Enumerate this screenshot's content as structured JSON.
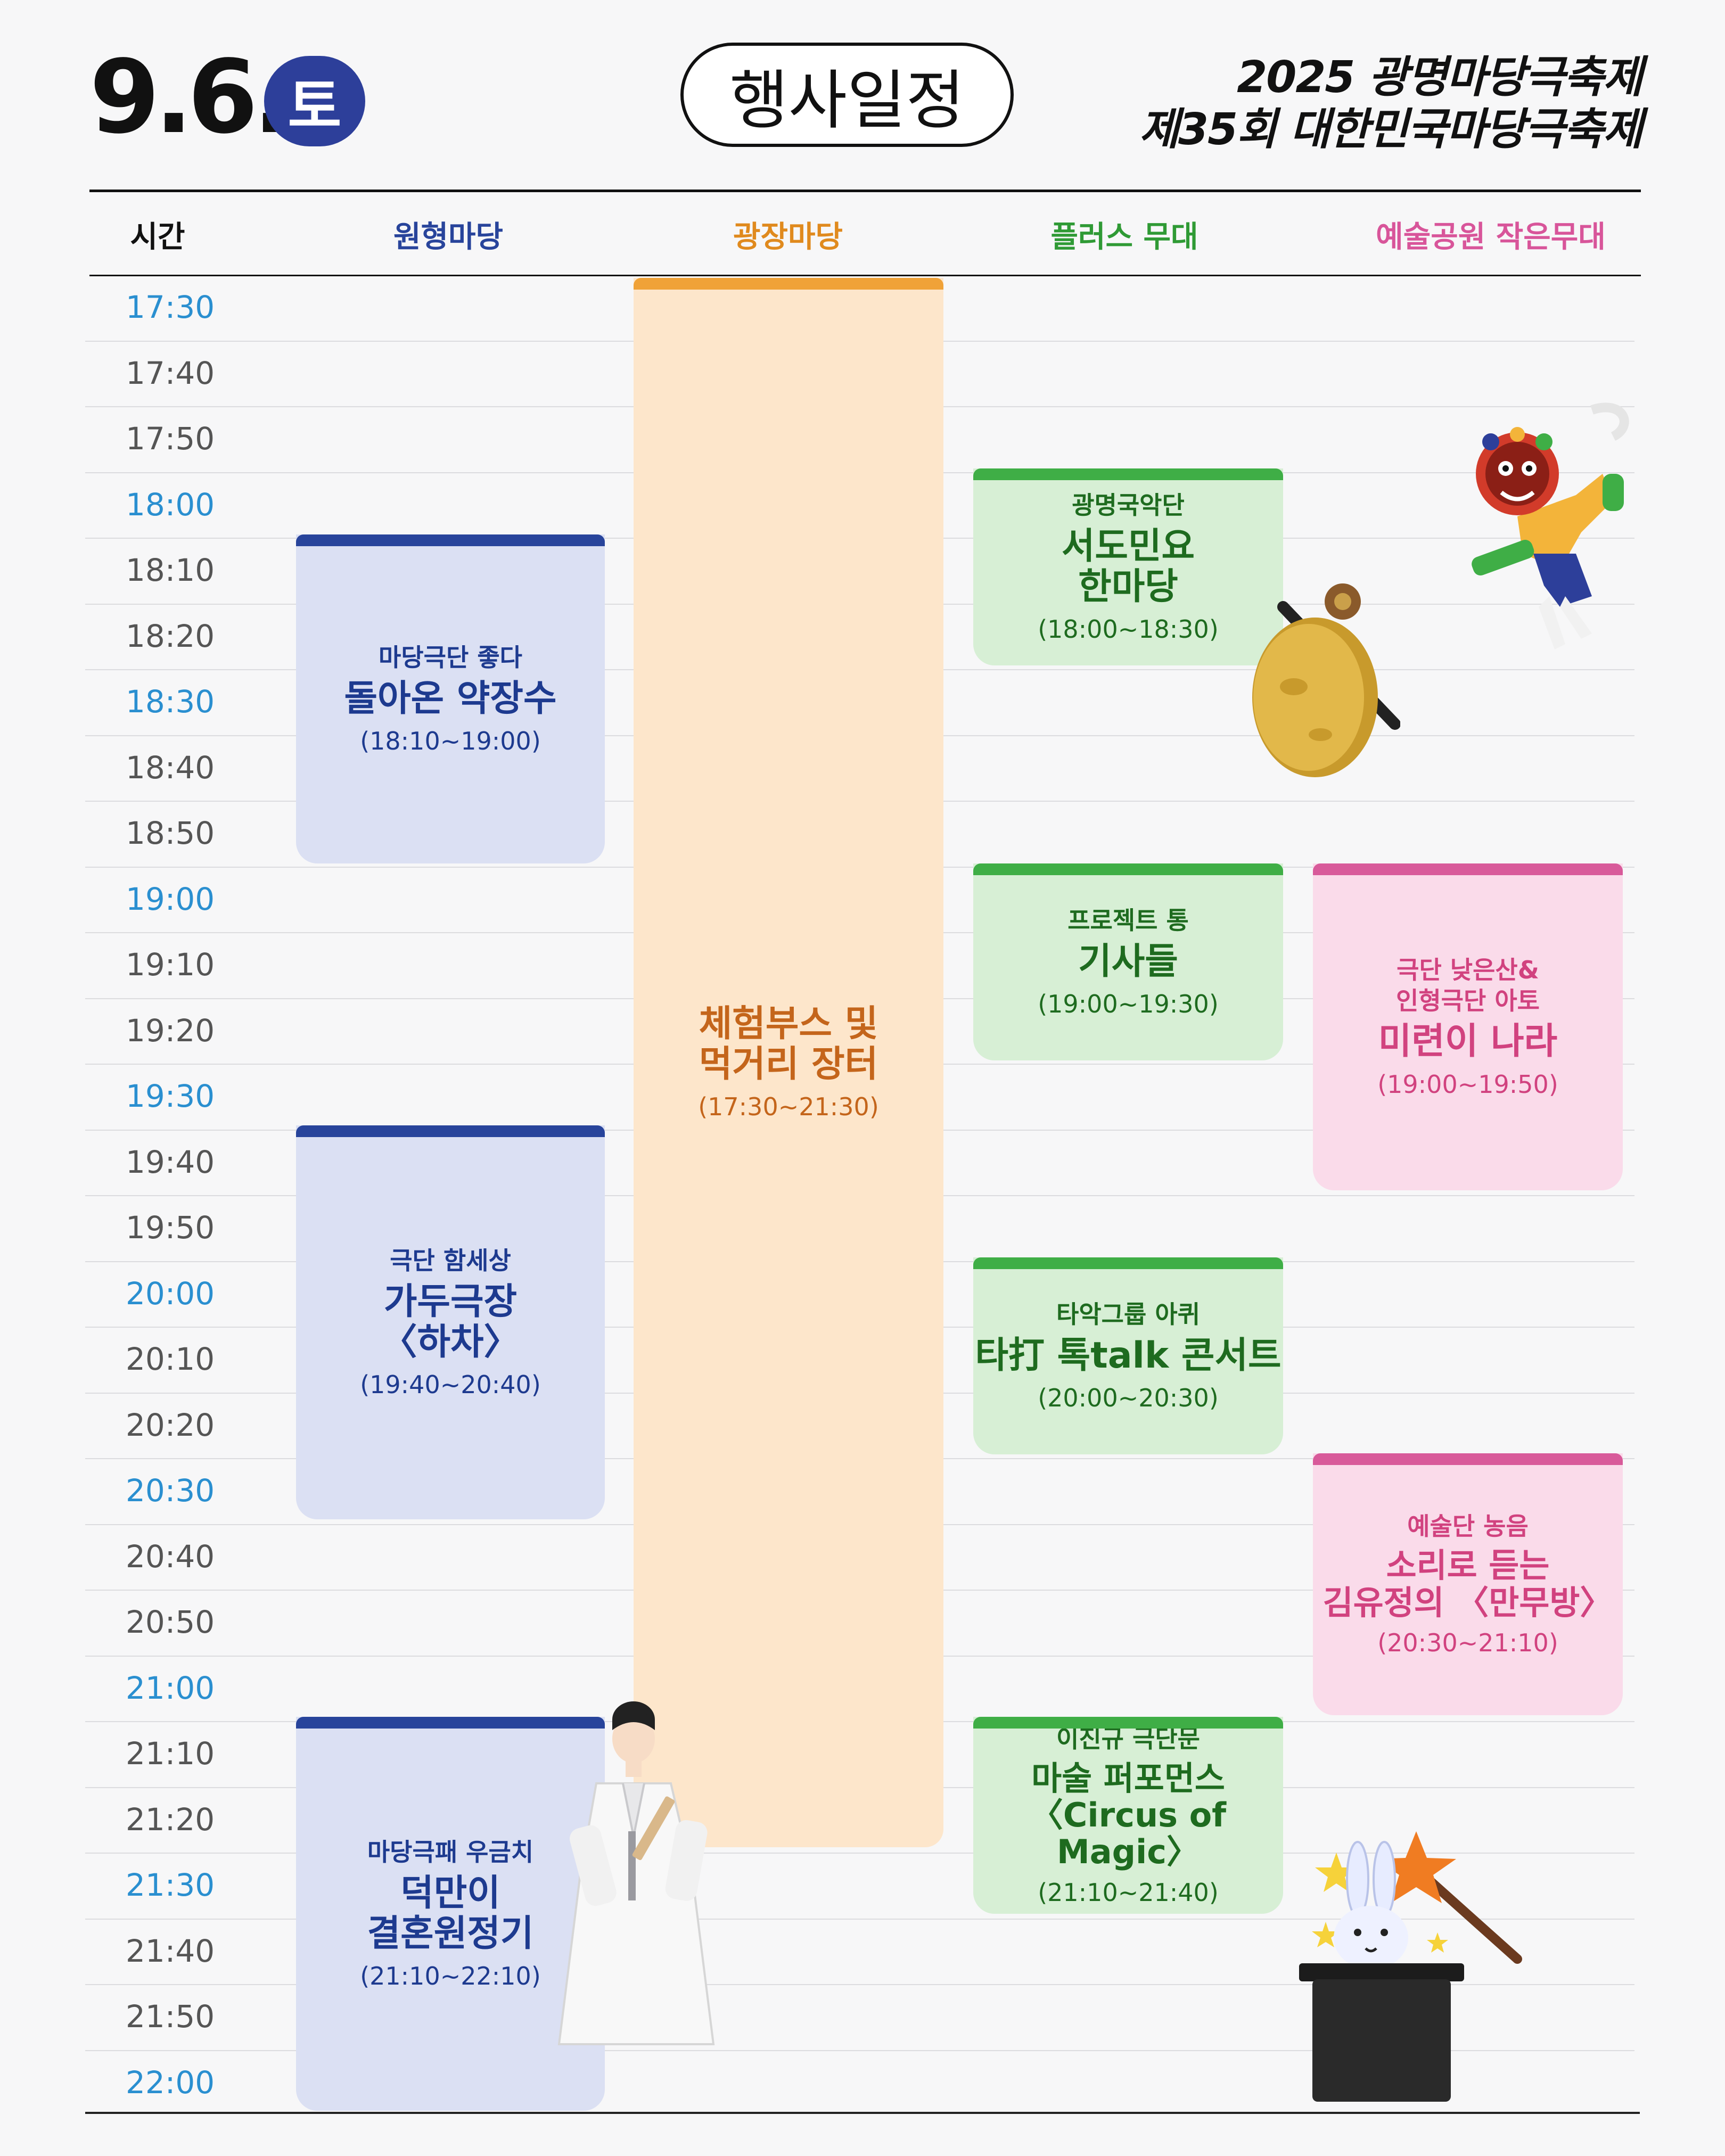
{
  "header": {
    "date": "9.6.",
    "day": "토",
    "title": "행사일정",
    "festival_line1": "2025 광명마당극축제",
    "festival_line2": "제35회 대한민국마당극축제"
  },
  "columns": {
    "time": "시간",
    "circle": "원형마당",
    "plaza": "광장마당",
    "plus": "플러스 무대",
    "park": "예술공원 작은무대"
  },
  "times": [
    "17:30",
    "17:40",
    "17:50",
    "18:00",
    "18:10",
    "18:20",
    "18:30",
    "18:40",
    "18:50",
    "19:00",
    "19:10",
    "19:20",
    "19:30",
    "19:40",
    "19:50",
    "20:00",
    "20:10",
    "20:20",
    "20:30",
    "20:40",
    "20:50",
    "21:00",
    "21:10",
    "21:20",
    "21:30",
    "21:40",
    "21:50",
    "22:00"
  ],
  "events": {
    "circle_1": {
      "org": "마당극단 좋다",
      "title": "돌아온 약장수",
      "time": "(18:10~19:00)"
    },
    "circle_2": {
      "org": "극단 함세상",
      "title": "가두극장\n〈하차〉",
      "time": "(19:40~20:40)"
    },
    "circle_3": {
      "org": "마당극패 우금치",
      "title": "덕만이\n결혼원정기",
      "time": "(21:10~22:10)"
    },
    "plaza_1": {
      "org": "",
      "title": "체험부스 및\n먹거리 장터",
      "time": "(17:30~21:30)"
    },
    "plus_1": {
      "org": "광명국악단",
      "title": "서도민요\n한마당",
      "time": "(18:00~18:30)"
    },
    "plus_2": {
      "org": "프로젝트 통",
      "title": "기사들",
      "time": "(19:00~19:30)"
    },
    "plus_3": {
      "org": "타악그룹 아퀴",
      "title": "타打 톡talk 콘서트",
      "time": "(20:00~20:30)"
    },
    "plus_4": {
      "org": "이진규 극단문",
      "title": "마술 퍼포먼스\n〈Circus of Magic〉",
      "time": "(21:10~21:40)"
    },
    "park_1": {
      "org": "극단 낮은산&\n인형극단 아토",
      "title": "미련이 나라",
      "time": "(19:00~19:50)"
    },
    "park_2": {
      "org": "예술단 농음",
      "title": "소리로 듣는\n김유정의 〈만무방〉",
      "time": "(20:30~21:10)"
    }
  },
  "colors": {
    "circle": "#28449b",
    "plaza": "#f0a238",
    "plus": "#3fae46",
    "park": "#d85a9a",
    "time_highlight": "#2a8fd0"
  },
  "decorations": [
    "mask-dancer-icon",
    "gong-icon",
    "hanbok-figure-icon",
    "magic-rabbit-hat-icon"
  ]
}
